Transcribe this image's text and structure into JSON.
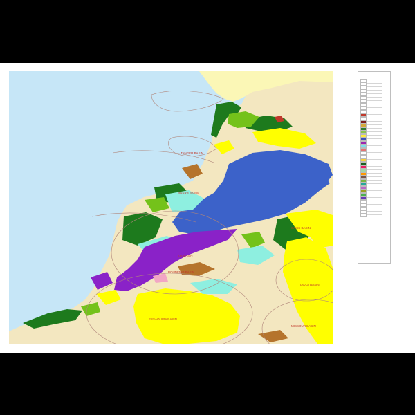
{
  "map": {
    "basin_labels": [
      {
        "id": "b1",
        "text": "TANGER BASIN"
      },
      {
        "id": "b2",
        "text": "RHARB BASIN"
      },
      {
        "id": "b3",
        "text": "SAISS BASIN"
      },
      {
        "id": "b4",
        "text": "BOUDENIB BASIN"
      },
      {
        "id": "b5",
        "text": "ESSAOUIRA BASIN"
      },
      {
        "id": "b6",
        "text": "TADLA BASIN"
      },
      {
        "id": "b7",
        "text": "MISSOUR BASIN"
      },
      {
        "id": "b8",
        "text": "ZIZ BASIN"
      }
    ]
  },
  "legend": {
    "title": "",
    "swatches": [
      "#ffffff",
      "#ffffff",
      "#ffffff",
      "#ffffff",
      "#ffffff",
      "#ffffff",
      "#ffffff",
      "#ffffff",
      "#ffffff",
      "#ffffff",
      "#c0392b",
      "#ffffff",
      "#7e1e1e",
      "#d4a93a",
      "#2e7d32",
      "#8bc34a",
      "#ffeb3b",
      "#3f51b5",
      "#9c27b0",
      "#80deea",
      "#e57373",
      "#ffffff",
      "#ffffff",
      "#f4d03f",
      "#1b5e20",
      "#e91e63",
      "#a5d6a7",
      "#ff9800",
      "#795548",
      "#7cb342",
      "#26a69a",
      "#ba68c8",
      "#9e9d24",
      "#4caf50",
      "#673ab7",
      "#ffffff",
      "#ffffff",
      "#ffffff",
      "#ffffff",
      "#ffffff"
    ]
  },
  "colors": {
    "sea": "#c6e6f7",
    "land": "#f3e7c0",
    "spain": "#fbf7b6",
    "yellow": "#ffff00",
    "blue": "#3c62c9",
    "purple": "#8a22c8",
    "green": "#1d7a1d",
    "lime": "#74c21a",
    "cyan": "#8eefe0",
    "brown": "#b5742c",
    "pink": "#f2a6c4"
  }
}
